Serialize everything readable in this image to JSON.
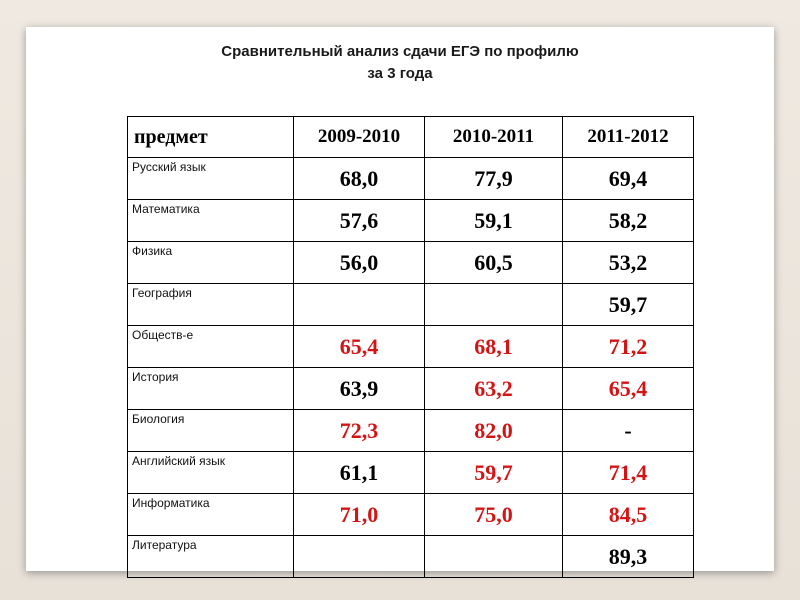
{
  "title": {
    "line1": "Сравнительный анализ сдачи ЕГЭ по профилю",
    "line2": "за 3 года"
  },
  "table": {
    "headers": [
      "предмет",
      "2009-2010",
      "2010-2011",
      "2011-2012"
    ],
    "rows": [
      {
        "subject": "Русский язык",
        "values": [
          "68,0",
          "77,9",
          "69,4"
        ],
        "colors": [
          "black",
          "black",
          "black"
        ]
      },
      {
        "subject": "Математика",
        "values": [
          "57,6",
          "59,1",
          "58,2"
        ],
        "colors": [
          "black",
          "black",
          "black"
        ]
      },
      {
        "subject": "Физика",
        "values": [
          "56,0",
          "60,5",
          "53,2"
        ],
        "colors": [
          "black",
          "black",
          "black"
        ]
      },
      {
        "subject": "География",
        "values": [
          "",
          "",
          "59,7"
        ],
        "colors": [
          "black",
          "black",
          "black"
        ]
      },
      {
        "subject": "Обществ-е",
        "values": [
          "65,4",
          "68,1",
          "71,2"
        ],
        "colors": [
          "red",
          "red",
          "red"
        ]
      },
      {
        "subject": "История",
        "values": [
          "63,9",
          "63,2",
          "65,4"
        ],
        "colors": [
          "black",
          "red",
          "red"
        ]
      },
      {
        "subject": "Биология",
        "values": [
          "72,3",
          "82,0",
          "-"
        ],
        "colors": [
          "red",
          "red",
          "black"
        ]
      },
      {
        "subject": "Английский язык",
        "values": [
          "61,1",
          "59,7",
          "71,4"
        ],
        "colors": [
          "black",
          "red",
          "red"
        ]
      },
      {
        "subject": "Информатика",
        "values": [
          "71,0",
          "75,0",
          "84,5"
        ],
        "colors": [
          "red",
          "red",
          "red"
        ]
      },
      {
        "subject": "Литература",
        "values": [
          "",
          "",
          "89,3"
        ],
        "colors": [
          "black",
          "black",
          "black"
        ]
      }
    ]
  },
  "colors": {
    "black": "#000000",
    "red": "#d41414"
  }
}
